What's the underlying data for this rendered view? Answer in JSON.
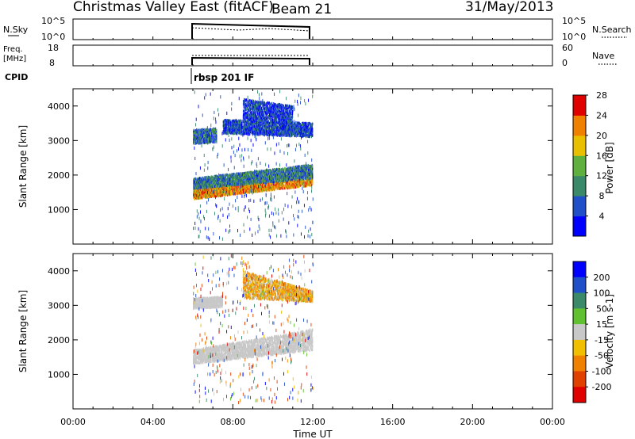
{
  "header": {
    "title": "Christmas Valley East (fitACF)",
    "beam": "Beam 21",
    "date": "31/May/2013"
  },
  "top_panels": {
    "nsky": {
      "left_label": "N.Sky",
      "left_ticks": [
        "10^5",
        "10^0"
      ],
      "right_ticks": [
        "10^5",
        "10^0"
      ],
      "right_label": "N.Search"
    },
    "freq": {
      "left_label_1": "Freq.",
      "left_label_2": "[MHz]",
      "left_ticks": [
        "18",
        "8"
      ],
      "right_ticks": [
        "60",
        "0"
      ],
      "right_label": "Nave"
    },
    "cpid": {
      "label": "CPID",
      "program": "rbsp 201 IF"
    }
  },
  "axes": {
    "ylabel": "Slant Range [km]",
    "xlabel": "Time UT",
    "xticks": [
      "00:00",
      "04:00",
      "08:00",
      "12:00",
      "16:00",
      "20:00",
      "00:00"
    ],
    "yticks": [
      "1000",
      "2000",
      "3000",
      "4000"
    ]
  },
  "colorbars": {
    "power": {
      "label": "Power [dB]",
      "ticks": [
        "4",
        "8",
        "12",
        "16",
        "20",
        "24",
        "28"
      ],
      "colors": [
        "#0000ff",
        "#2050c8",
        "#3a8a6a",
        "#60b040",
        "#e8c000",
        "#f08000",
        "#e00000"
      ]
    },
    "velocity": {
      "label": "Velocity [m s-1]",
      "ticks": [
        "200",
        "100",
        "50",
        "15",
        "-15",
        "-50",
        "-100",
        "-200"
      ],
      "colors": [
        "#0000ff",
        "#2050c8",
        "#3a8a6a",
        "#60c030",
        "#c8c8c8",
        "#f0c000",
        "#f08000",
        "#e04000",
        "#e00000"
      ]
    }
  },
  "chart_data": [
    {
      "type": "heatmap",
      "name": "power",
      "xlim": [
        0,
        24
      ],
      "ylim": [
        0,
        4500
      ],
      "time_range": [
        6.0,
        12.0
      ],
      "bands": [
        {
          "t0": 6.0,
          "t1": 12.0,
          "r0": 1300,
          "r1": 1600,
          "r1_end": 2100,
          "r0_end": 1700,
          "power": 22
        },
        {
          "t0": 6.0,
          "t1": 12.0,
          "r0": 1600,
          "r1": 1900,
          "r0_end": 1900,
          "r1_end": 2300,
          "power": 10
        },
        {
          "t0": 6.0,
          "t1": 7.2,
          "r0": 2900,
          "r1": 3300,
          "r0_end": 2950,
          "r1_end": 3350,
          "power": 9
        },
        {
          "t0": 7.5,
          "t1": 12.0,
          "r0": 3200,
          "r1": 3600,
          "r0_end": 3100,
          "r1_end": 3500,
          "power": 6
        },
        {
          "t0": 8.5,
          "t1": 11.0,
          "r0": 3600,
          "r1": 4200,
          "r0_end": 3500,
          "r1_end": 4000,
          "power": 5
        }
      ]
    },
    {
      "type": "heatmap",
      "name": "velocity",
      "xlim": [
        0,
        24
      ],
      "ylim": [
        0,
        4500
      ],
      "time_range": [
        6.0,
        12.0
      ],
      "bands": [
        {
          "t0": 6.0,
          "t1": 12.0,
          "r0": 1300,
          "r1": 1700,
          "r0_end": 1700,
          "r1_end": 2300,
          "velocity": 0
        },
        {
          "t0": 6.0,
          "t1": 7.5,
          "r0": 2900,
          "r1": 3200,
          "r0_end": 2950,
          "r1_end": 3250,
          "velocity": 0
        },
        {
          "t0": 8.5,
          "t1": 12.0,
          "r0": 3200,
          "r1": 4000,
          "r0_end": 3100,
          "r1_end": 3400,
          "velocity": -40
        }
      ]
    }
  ]
}
